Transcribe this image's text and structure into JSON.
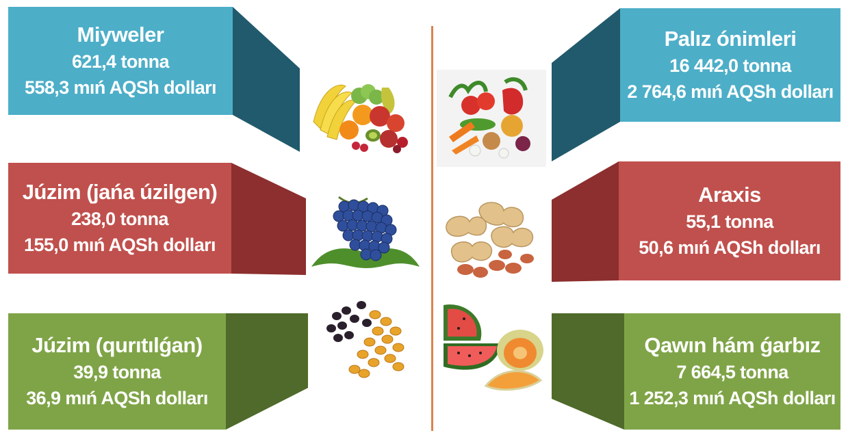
{
  "colors": {
    "blue": "#4daec8",
    "blue_dark": "#215a6c",
    "red": "#c0504d",
    "red_dark": "#8c2f2e",
    "green": "#7fa447",
    "green_dark": "#4f6a2a",
    "divider": "#d9834e"
  },
  "left": [
    {
      "title": "Miyweler",
      "amount": "621,4 tonna",
      "value": "558,3 mıń AQSh dolları",
      "icon": "mixed-fruit-icon"
    },
    {
      "title": "Júzim (jańa úzilgen)",
      "amount": "238,0 tonna",
      "value": "155,0 mıń AQSh dolları",
      "icon": "grapes-icon"
    },
    {
      "title": "Júzim (qurıtılǵan)",
      "amount": "39,9 tonna",
      "value": "36,9 mıń AQSh dolları",
      "icon": "raisins-icon"
    }
  ],
  "right": [
    {
      "title": "Palız ónimleri",
      "amount": "16 442,0 tonna",
      "value": "2 764,6 mıń AQSh dolları",
      "icon": "vegetables-icon"
    },
    {
      "title": "Araxis",
      "amount": "55,1 tonna",
      "value": "50,6 mıń AQSh dolları",
      "icon": "peanuts-icon"
    },
    {
      "title": "Qawın hám ǵarbız",
      "amount": "7 664,5 tonna",
      "value": "1 252,3 mıń AQSh dolları",
      "icon": "melon-watermelon-icon"
    }
  ]
}
